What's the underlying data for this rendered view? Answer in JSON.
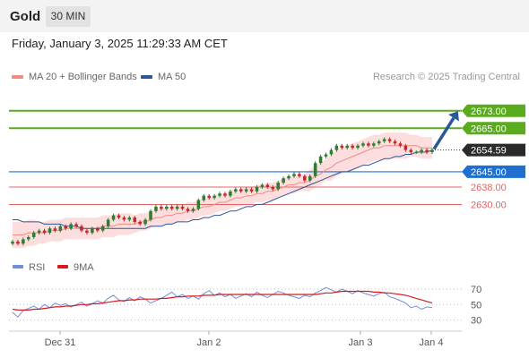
{
  "header": {
    "asset": "Gold",
    "timeframe": "30 MIN"
  },
  "datetime": "Friday, January 3, 2025 11:29:33 AM CET",
  "legend": {
    "bollinger": {
      "label": "MA 20 + Bollinger Bands",
      "color": "#f28b82"
    },
    "ma50": {
      "label": "MA 50",
      "color": "#2b5797"
    }
  },
  "research": "Research © 2025 Trading Central",
  "colors": {
    "up": "#2e7d32",
    "down": "#c62828",
    "resistance": "#5aab1e",
    "support": "#1f6fd1",
    "minor": "#e06666",
    "arrow": "#2b5797",
    "band": "#fbd6d6",
    "rsi": "#6f8fd9",
    "rsi_ma": "#d71920"
  },
  "chart_data": [
    {
      "type": "line",
      "title": "",
      "ylim": [
        2608,
        2684
      ],
      "x_labels": [
        "Dec 31",
        "Jan 2",
        "Jan 3",
        "Jan 4"
      ],
      "last_price": "2654.59",
      "levels": [
        {
          "label": "2673.00",
          "value": 2673,
          "kind": "resistance"
        },
        {
          "label": "2665.00",
          "value": 2665,
          "kind": "resistance"
        },
        {
          "label": "2645.00",
          "value": 2645,
          "kind": "support"
        },
        {
          "label": "2638.00",
          "value": 2638,
          "kind": "minor"
        },
        {
          "label": "2630.00",
          "value": 2630,
          "kind": "minor"
        }
      ],
      "series": [
        {
          "name": "Price",
          "values": [
            2613,
            2612,
            2614,
            2615,
            2617,
            2618,
            2617,
            2619,
            2618,
            2620,
            2619,
            2621,
            2620,
            2618,
            2617,
            2619,
            2618,
            2620,
            2623,
            2625,
            2624,
            2623,
            2624,
            2622,
            2621,
            2623,
            2627,
            2629,
            2628,
            2629,
            2628,
            2629,
            2628,
            2627,
            2628,
            2632,
            2634,
            2633,
            2634,
            2635,
            2634,
            2636,
            2637,
            2636,
            2637,
            2636,
            2638,
            2639,
            2638,
            2637,
            2640,
            2642,
            2643,
            2644,
            2643,
            2641,
            2643,
            2649,
            2652,
            2653,
            2655,
            2657,
            2656,
            2657,
            2656,
            2657,
            2658,
            2657,
            2658,
            2659,
            2660,
            2659,
            2658,
            2657,
            2655,
            2654,
            2654,
            2655,
            2654,
            2655
          ]
        },
        {
          "name": "MA 20",
          "values": [
            2616,
            2616,
            2616,
            2617,
            2617,
            2617,
            2617,
            2618,
            2618,
            2618,
            2619,
            2619,
            2619,
            2619,
            2619,
            2619,
            2619,
            2620,
            2620,
            2620,
            2621,
            2621,
            2621,
            2621,
            2622,
            2622,
            2623,
            2624,
            2624,
            2625,
            2625,
            2626,
            2626,
            2627,
            2627,
            2628,
            2629,
            2629,
            2630,
            2631,
            2631,
            2632,
            2633,
            2633,
            2634,
            2634,
            2635,
            2635,
            2636,
            2636,
            2637,
            2638,
            2639,
            2639,
            2640,
            2640,
            2641,
            2643,
            2644,
            2646,
            2647,
            2649,
            2650,
            2651,
            2652,
            2653,
            2654,
            2655,
            2656,
            2656,
            2657,
            2657,
            2657,
            2657,
            2657,
            2657,
            2657,
            2656,
            2656,
            2656
          ]
        },
        {
          "name": "MA 50",
          "values": [
            2623,
            2623,
            2622,
            2622,
            2622,
            2622,
            2621,
            2621,
            2621,
            2621,
            2620,
            2620,
            2620,
            2619,
            2619,
            2619,
            2619,
            2619,
            2619,
            2619,
            2619,
            2619,
            2619,
            2619,
            2619,
            2619,
            2620,
            2620,
            2620,
            2621,
            2621,
            2622,
            2622,
            2622,
            2623,
            2623,
            2624,
            2624,
            2625,
            2625,
            2626,
            2627,
            2627,
            2628,
            2629,
            2629,
            2630,
            2630,
            2631,
            2632,
            2633,
            2634,
            2635,
            2636,
            2637,
            2638,
            2639,
            2640,
            2641,
            2642,
            2643,
            2644,
            2645,
            2645,
            2646,
            2647,
            2648,
            2648,
            2649,
            2650,
            2651,
            2651,
            2652,
            2652,
            2653,
            2653,
            2654,
            2654,
            2654,
            2655
          ]
        }
      ],
      "bollinger_width": [
        6,
        6,
        6,
        6,
        6,
        5,
        5,
        5,
        5,
        5,
        5,
        5,
        5,
        5,
        5,
        5,
        5,
        5,
        5,
        5,
        5,
        5,
        5,
        4,
        4,
        4,
        4,
        4,
        4,
        4,
        4,
        4,
        4,
        4,
        4,
        4,
        4,
        4,
        4,
        4,
        4,
        4,
        4,
        4,
        4,
        4,
        4,
        4,
        4,
        4,
        4,
        4,
        4,
        4,
        4,
        4,
        5,
        5,
        5,
        5,
        6,
        6,
        6,
        6,
        6,
        6,
        6,
        6,
        6,
        6,
        6,
        6,
        6,
        6,
        6,
        5,
        5,
        5,
        5,
        5
      ],
      "projection": {
        "from": 2655,
        "to": 2673
      }
    },
    {
      "type": "line",
      "title": "",
      "legend": [
        "RSI",
        "9MA"
      ],
      "ylim": [
        25,
        78
      ],
      "y_ticks": [
        70,
        50,
        30
      ],
      "series": [
        {
          "name": "RSI",
          "values": [
            40,
            34,
            42,
            45,
            48,
            44,
            50,
            46,
            52,
            49,
            51,
            47,
            50,
            53,
            48,
            51,
            55,
            52,
            58,
            62,
            56,
            54,
            59,
            55,
            60,
            57,
            52,
            55,
            58,
            62,
            66,
            60,
            63,
            58,
            61,
            57,
            64,
            68,
            62,
            65,
            60,
            63,
            58,
            61,
            64,
            60,
            66,
            62,
            59,
            63,
            67,
            65,
            62,
            60,
            58,
            62,
            60,
            65,
            68,
            72,
            69,
            66,
            70,
            67,
            64,
            68,
            65,
            63,
            61,
            64,
            66,
            60,
            58,
            55,
            52,
            46,
            48,
            44,
            47,
            46
          ]
        },
        {
          "name": "9MA",
          "values": [
            44,
            43,
            43,
            43,
            44,
            44,
            45,
            46,
            47,
            47,
            48,
            48,
            49,
            50,
            50,
            51,
            51,
            52,
            53,
            54,
            55,
            55,
            56,
            56,
            57,
            57,
            57,
            57,
            58,
            58,
            59,
            60,
            60,
            61,
            61,
            61,
            62,
            62,
            62,
            63,
            63,
            63,
            63,
            63,
            63,
            63,
            63,
            63,
            63,
            63,
            63,
            63,
            63,
            63,
            63,
            63,
            63,
            63,
            64,
            65,
            65,
            66,
            67,
            67,
            67,
            67,
            67,
            67,
            66,
            66,
            65,
            65,
            64,
            63,
            62,
            60,
            58,
            56,
            54,
            52
          ]
        }
      ]
    }
  ]
}
